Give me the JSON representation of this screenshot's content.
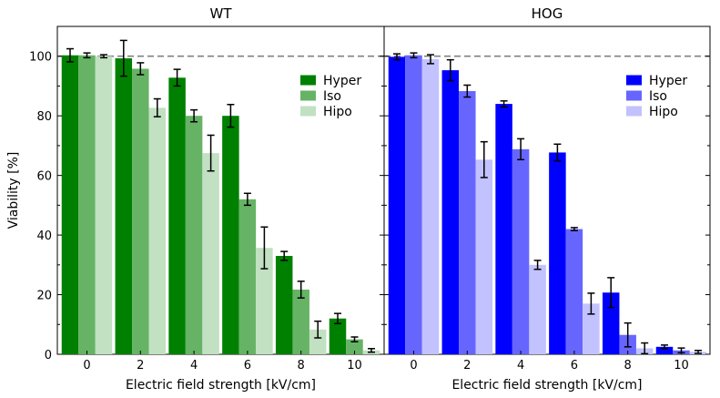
{
  "chart_data": [
    {
      "type": "bar",
      "title": "WT",
      "xlabel": "Electric field strength [kV/cm]",
      "ylabel": "Viability [%]",
      "categories": [
        "0",
        "2",
        "4",
        "6",
        "8",
        "10"
      ],
      "ylim": [
        0,
        110
      ],
      "yticks": [
        "0",
        "20",
        "40",
        "60",
        "80",
        "100"
      ],
      "reference_line": 100,
      "legend_position": "upper right",
      "grid": false,
      "series": [
        {
          "name": "Hyper",
          "color": "#008000",
          "values": [
            100.3,
            99.3,
            92.8,
            80.0,
            33.0,
            12.0
          ],
          "errors": [
            2.2,
            6.0,
            2.8,
            3.8,
            1.5,
            1.7
          ]
        },
        {
          "name": "Iso",
          "color": "#66b366",
          "values": [
            100.3,
            95.8,
            80.0,
            52.0,
            21.7,
            5.0
          ],
          "errors": [
            0.8,
            2.0,
            2.0,
            2.0,
            2.8,
            0.8
          ]
        },
        {
          "name": "Hipo",
          "color": "#c2e0c2",
          "values": [
            100.0,
            82.7,
            67.5,
            35.7,
            8.3,
            1.3
          ],
          "errors": [
            0.5,
            3.0,
            6.0,
            7.0,
            2.8,
            0.6
          ]
        }
      ]
    },
    {
      "type": "bar",
      "title": "HOG",
      "xlabel": "Electric field strength [kV/cm]",
      "ylabel": "",
      "categories": [
        "0",
        "2",
        "4",
        "6",
        "8",
        "10"
      ],
      "ylim": [
        0,
        110
      ],
      "reference_line": 100,
      "legend_position": "upper right",
      "grid": false,
      "series": [
        {
          "name": "Hyper",
          "color": "#0000ff",
          "values": [
            99.8,
            95.3,
            84.0,
            67.7,
            20.7,
            2.5
          ],
          "errors": [
            1.0,
            3.5,
            1.0,
            2.8,
            5.0,
            0.6
          ]
        },
        {
          "name": "Iso",
          "color": "#6666ff",
          "values": [
            100.3,
            88.3,
            68.8,
            42.0,
            6.5,
            1.3
          ],
          "errors": [
            0.8,
            2.0,
            3.5,
            0.5,
            4.0,
            0.8
          ]
        },
        {
          "name": "Hipo",
          "color": "#c2c2ff",
          "values": [
            99.0,
            65.3,
            30.0,
            17.0,
            2.0,
            0.8
          ],
          "errors": [
            1.5,
            6.0,
            1.5,
            3.5,
            1.8,
            0.5
          ]
        }
      ]
    }
  ]
}
